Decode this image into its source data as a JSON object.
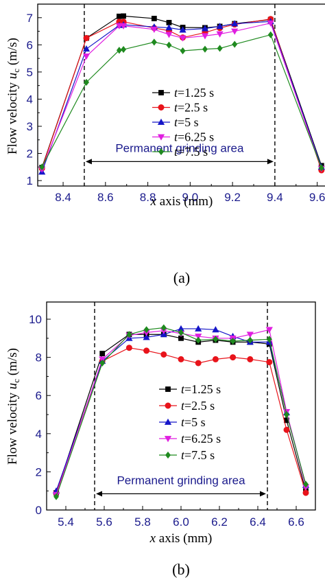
{
  "colors": {
    "s1": "#000000",
    "s2": "#e8131a",
    "s3": "#1515c8",
    "s4": "#e01ee0",
    "s5": "#1f8a1f",
    "tick_text": "#1a1a8c",
    "annotation": "#1a1a8c"
  },
  "chart_data": [
    {
      "type": "line",
      "panel_label": "(a)",
      "xlabel_italic": "x",
      "xlabel_rest": " axis (mm)",
      "ylabel_main": "Flow velocity ",
      "ylabel_italic": "u",
      "ylabel_sub": "c",
      "ylabel_unit": " (m/s)",
      "xlim": [
        8.28,
        9.64
      ],
      "ylim": [
        0.8,
        7.5
      ],
      "xticks": [
        8.4,
        8.6,
        8.8,
        9.0,
        9.2,
        9.4,
        9.6
      ],
      "xtick_labels": [
        "8.4",
        "8.6",
        "8.8",
        "9.0",
        "9.2",
        "9.4",
        "9.6"
      ],
      "yticks": [
        1,
        2,
        3,
        4,
        5,
        6,
        7
      ],
      "ytick_labels": [
        "1",
        "2",
        "3",
        "4",
        "5",
        "6",
        "7"
      ],
      "dashed_lines_x": [
        8.5,
        9.4
      ],
      "annotation": {
        "text": "Permanent grinding area",
        "x_start": 8.5,
        "x_end": 9.4,
        "y": 1.7,
        "text_y": 2.05
      },
      "legend_position": "center-right",
      "series": [
        {
          "name_italic": "t",
          "name_rest": "=1.25 s",
          "marker": "square",
          "x": [
            8.3,
            8.51,
            8.665,
            8.685,
            8.83,
            8.9,
            8.965,
            9.07,
            9.14,
            9.21,
            9.38,
            9.62
          ],
          "y": [
            1.48,
            6.25,
            7.05,
            7.06,
            6.97,
            6.82,
            6.64,
            6.63,
            6.68,
            6.78,
            6.93,
            1.55
          ]
        },
        {
          "name_italic": "t",
          "name_rest": "=2.5 s",
          "marker": "circle",
          "x": [
            8.3,
            8.51,
            8.665,
            8.685,
            8.83,
            8.9,
            8.965,
            9.07,
            9.14,
            9.21,
            9.38,
            9.62
          ],
          "y": [
            1.45,
            6.25,
            6.85,
            6.85,
            6.62,
            6.52,
            6.27,
            6.45,
            6.62,
            6.75,
            6.95,
            1.38
          ]
        },
        {
          "name_italic": "t",
          "name_rest": "=5 s",
          "marker": "triangle-up",
          "x": [
            8.3,
            8.51,
            8.665,
            8.685,
            8.83,
            8.9,
            8.965,
            9.07,
            9.14,
            9.21,
            9.38,
            9.62
          ],
          "y": [
            1.32,
            5.85,
            6.72,
            6.74,
            6.66,
            6.63,
            6.55,
            6.6,
            6.68,
            6.78,
            6.86,
            1.5
          ]
        },
        {
          "name_italic": "t",
          "name_rest": "=6.25 s",
          "marker": "triangle-down",
          "x": [
            8.3,
            8.51,
            8.665,
            8.685,
            8.83,
            8.9,
            8.965,
            9.07,
            9.14,
            9.21,
            9.38,
            9.62
          ],
          "y": [
            1.42,
            5.58,
            6.7,
            6.7,
            6.57,
            6.38,
            6.25,
            6.33,
            6.4,
            6.5,
            6.8,
            1.44
          ]
        },
        {
          "name_italic": "t",
          "name_rest": "=7.5 s",
          "marker": "diamond",
          "x": [
            8.3,
            8.51,
            8.665,
            8.685,
            8.83,
            8.9,
            8.965,
            9.07,
            9.14,
            9.21,
            9.38,
            9.62
          ],
          "y": [
            1.5,
            4.62,
            5.8,
            5.83,
            6.1,
            5.99,
            5.78,
            5.84,
            5.87,
            6.02,
            6.37,
            1.47
          ]
        }
      ]
    },
    {
      "type": "line",
      "panel_label": "(b)",
      "xlabel_italic": "x",
      "xlabel_rest": " axis (mm)",
      "ylabel_main": "Flow velocity ",
      "ylabel_italic": "u",
      "ylabel_sub": "c",
      "ylabel_unit": " (m/s)",
      "xlim": [
        5.3,
        6.7
      ],
      "ylim": [
        0,
        10.9
      ],
      "xticks": [
        5.4,
        5.6,
        5.8,
        6.0,
        6.2,
        6.4,
        6.6
      ],
      "xtick_labels": [
        "5.4",
        "5.6",
        "5.8",
        "6.0",
        "6.2",
        "6.4",
        "6.6"
      ],
      "yticks": [
        0,
        2,
        4,
        6,
        8,
        10
      ],
      "ytick_labels": [
        "0",
        "2",
        "4",
        "6",
        "8",
        "10"
      ],
      "dashed_lines_x": [
        5.55,
        6.45
      ],
      "annotation": {
        "text": "Permanent grinding area",
        "x_start": 5.55,
        "x_end": 6.45,
        "y": 0.85,
        "text_y": 1.35
      },
      "legend_position": "center-right",
      "series": [
        {
          "name_italic": "t",
          "name_rest": "=1.25 s",
          "marker": "square",
          "x": [
            5.35,
            5.59,
            5.73,
            5.82,
            5.91,
            6.0,
            6.09,
            6.18,
            6.27,
            6.36,
            6.46,
            6.55,
            6.65
          ],
          "y": [
            0.9,
            8.2,
            9.2,
            9.2,
            9.2,
            9.0,
            8.8,
            8.9,
            8.8,
            8.8,
            8.7,
            4.7,
            1.0
          ]
        },
        {
          "name_italic": "t",
          "name_rest": "=2.5 s",
          "marker": "circle",
          "x": [
            5.35,
            5.59,
            5.73,
            5.82,
            5.91,
            6.0,
            6.09,
            6.18,
            6.27,
            6.36,
            6.46,
            6.55,
            6.65
          ],
          "y": [
            0.9,
            7.8,
            8.5,
            8.35,
            8.15,
            7.9,
            7.7,
            7.9,
            8.0,
            7.9,
            7.75,
            4.2,
            0.9
          ]
        },
        {
          "name_italic": "t",
          "name_rest": "=5 s",
          "marker": "triangle-up",
          "x": [
            5.35,
            5.59,
            5.73,
            5.82,
            5.91,
            6.0,
            6.09,
            6.18,
            6.27,
            6.36,
            6.46,
            6.55,
            6.65
          ],
          "y": [
            1.0,
            7.8,
            9.0,
            9.05,
            9.2,
            9.5,
            9.5,
            9.45,
            9.1,
            8.8,
            8.8,
            5.1,
            1.3
          ]
        },
        {
          "name_italic": "t",
          "name_rest": "=6.25 s",
          "marker": "triangle-down",
          "x": [
            5.35,
            5.59,
            5.73,
            5.82,
            5.91,
            6.0,
            6.09,
            6.18,
            6.27,
            6.36,
            6.46,
            6.55,
            6.65
          ],
          "y": [
            0.8,
            7.9,
            9.15,
            9.3,
            9.4,
            9.25,
            9.1,
            9.0,
            9.0,
            9.2,
            9.45,
            5.15,
            1.2
          ]
        },
        {
          "name_italic": "t",
          "name_rest": "=7.5 s",
          "marker": "diamond",
          "x": [
            5.35,
            5.59,
            5.73,
            5.82,
            5.91,
            6.0,
            6.09,
            6.18,
            6.27,
            6.36,
            6.46,
            6.55,
            6.65
          ],
          "y": [
            0.7,
            7.7,
            9.2,
            9.45,
            9.55,
            9.3,
            8.9,
            8.95,
            8.85,
            8.9,
            8.95,
            5.0,
            1.35
          ]
        }
      ]
    }
  ]
}
